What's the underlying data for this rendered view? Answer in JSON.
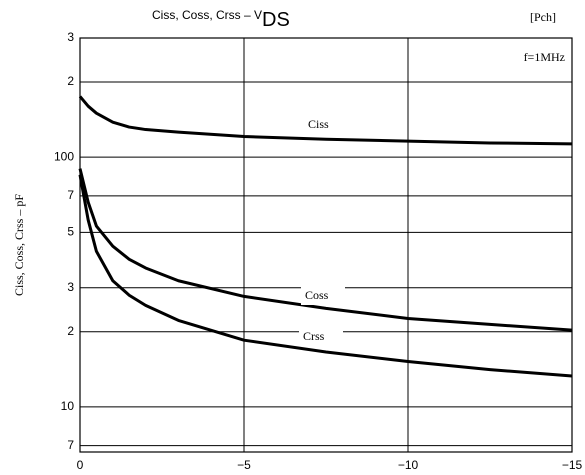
{
  "chart_data": {
    "type": "line",
    "title": "Ciss, Coss, Crss – V",
    "title_subscript": "DS",
    "title_note": "[Pch]",
    "annotation": "f=1MHz",
    "y_label": "Ciss, Coss, Crss – pF",
    "log_y": true,
    "grid": true,
    "x": [
      0,
      -0.25,
      -0.5,
      -1,
      -1.5,
      -2,
      -3,
      -5,
      -7.5,
      -10,
      -12.5,
      -15
    ],
    "series": [
      {
        "name": "Ciss",
        "color": "#000000",
        "values": [
          175,
          160,
          150,
          138,
          132,
          129,
          126,
          121,
          118,
          116,
          114,
          113
        ]
      },
      {
        "name": "Coss",
        "color": "#000000",
        "values": [
          90,
          66,
          53,
          44,
          39,
          36,
          32,
          27.7,
          24.8,
          22.6,
          21.4,
          20.3
        ]
      },
      {
        "name": "Crss",
        "color": "#000000",
        "values": [
          85,
          56,
          42,
          32,
          28,
          25.5,
          22.2,
          18.5,
          16.6,
          15.2,
          14.1,
          13.3
        ]
      }
    ],
    "xlim": [
      0,
      -15
    ],
    "xticks": [
      0,
      {
        "value": -5,
        "label": "−5"
      },
      {
        "value": -10,
        "label": "−10"
      },
      {
        "value": -15,
        "label": "−15"
      }
    ],
    "ylim": [
      6.6,
      300
    ],
    "yticks": [
      {
        "value": 300,
        "label": "3"
      },
      {
        "value": 200,
        "label": "2"
      },
      100,
      {
        "value": 70,
        "label": "7"
      },
      {
        "value": 50,
        "label": "5"
      },
      {
        "value": 30,
        "label": "3"
      },
      {
        "value": 20,
        "label": "2"
      },
      10,
      {
        "value": 7,
        "label": "7"
      }
    ]
  }
}
